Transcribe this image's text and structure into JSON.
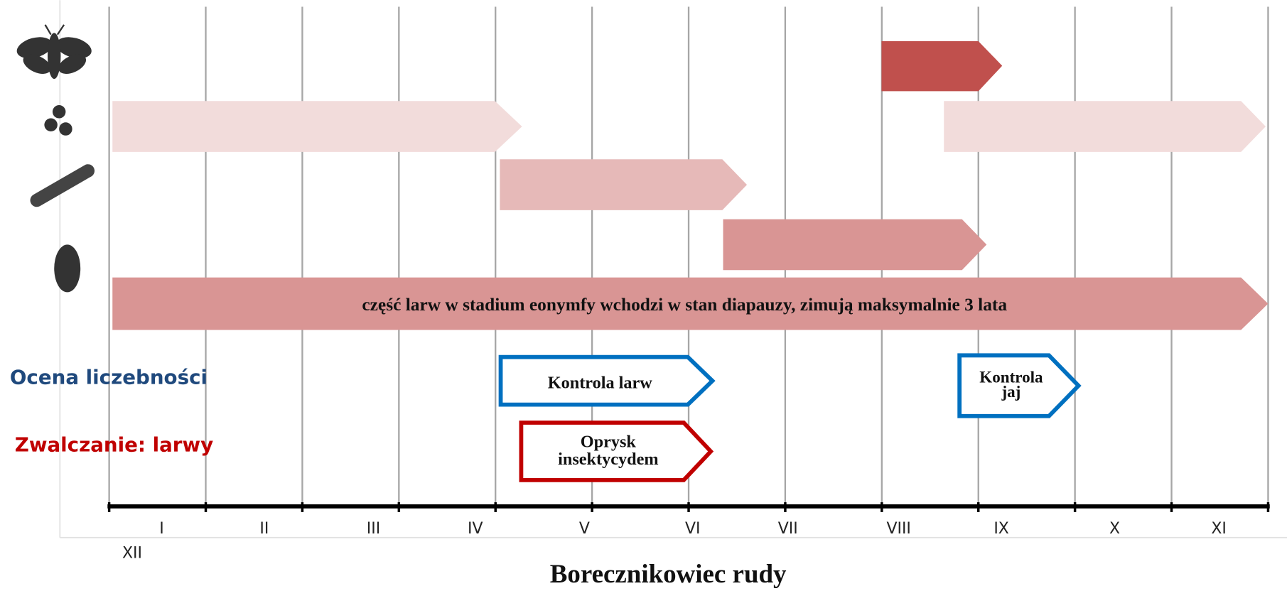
{
  "title": "Borecznikowiec rudy",
  "months": [
    "I",
    "II",
    "III",
    "IV",
    "V",
    "VI",
    "VII",
    "VIII",
    "IX",
    "X",
    "XI",
    "XII"
  ],
  "row_labels": {
    "monitoring": "Ocena liczebności",
    "control": "Zwalczanie: larwy"
  },
  "diapause_note": "część larw w stadium eonymfy wchodzi w stan diapauzy, zimują maksymalnie 3 lata",
  "actions": {
    "larvae_check": [
      "Kontrola larw"
    ],
    "egg_check": [
      "Kontrola",
      "jaj"
    ],
    "spray": [
      "Oprysk",
      "insektycydem"
    ]
  }
}
